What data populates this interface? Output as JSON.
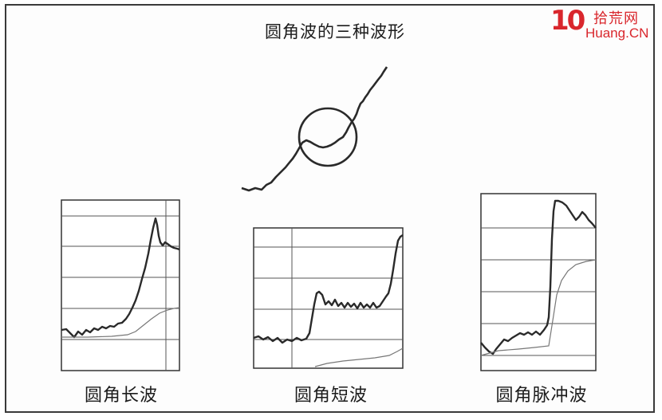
{
  "title": "圆角波的三种波形",
  "captions": {
    "long": "圆角长波",
    "short": "圆角短波",
    "pulse": "圆角脉冲波"
  },
  "logo": {
    "number": "10",
    "brand_cn": "拾荒网",
    "brand_en": "Huang.CN",
    "color": "#d9262c"
  },
  "colors": {
    "line": "#2a2a2a",
    "grid": "#555555"
  }
}
